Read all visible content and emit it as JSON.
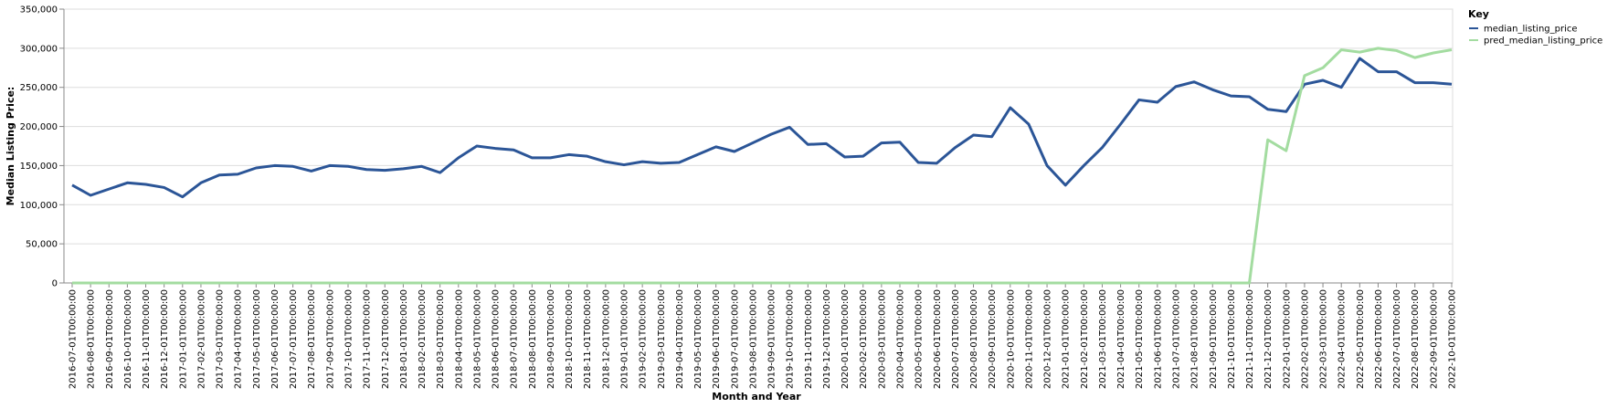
{
  "chart_data": {
    "type": "line",
    "xlabel": "Month and Year",
    "ylabel": "Median Listing Price:",
    "ylim": [
      0,
      350000
    ],
    "yticks": [
      "0",
      "50,000",
      "100,000",
      "150,000",
      "200,000",
      "250,000",
      "300,000",
      "350,000"
    ],
    "grid": true,
    "legend": {
      "title": "Key",
      "placement": "top-right"
    },
    "x": [
      "2016-07-01T00:00:00",
      "2016-08-01T00:00:00",
      "2016-09-01T00:00:00",
      "2016-10-01T00:00:00",
      "2016-11-01T00:00:00",
      "2016-12-01T00:00:00",
      "2017-01-01T00:00:00",
      "2017-02-01T00:00:00",
      "2017-03-01T00:00:00",
      "2017-04-01T00:00:00",
      "2017-05-01T00:00:00",
      "2017-06-01T00:00:00",
      "2017-07-01T00:00:00",
      "2017-08-01T00:00:00",
      "2017-09-01T00:00:00",
      "2017-10-01T00:00:00",
      "2017-11-01T00:00:00",
      "2017-12-01T00:00:00",
      "2018-01-01T00:00:00",
      "2018-02-01T00:00:00",
      "2018-03-01T00:00:00",
      "2018-04-01T00:00:00",
      "2018-05-01T00:00:00",
      "2018-06-01T00:00:00",
      "2018-07-01T00:00:00",
      "2018-08-01T00:00:00",
      "2018-09-01T00:00:00",
      "2018-10-01T00:00:00",
      "2018-11-01T00:00:00",
      "2018-12-01T00:00:00",
      "2019-01-01T00:00:00",
      "2019-02-01T00:00:00",
      "2019-03-01T00:00:00",
      "2019-04-01T00:00:00",
      "2019-05-01T00:00:00",
      "2019-06-01T00:00:00",
      "2019-07-01T00:00:00",
      "2019-08-01T00:00:00",
      "2019-09-01T00:00:00",
      "2019-10-01T00:00:00",
      "2019-11-01T00:00:00",
      "2019-12-01T00:00:00",
      "2020-01-01T00:00:00",
      "2020-02-01T00:00:00",
      "2020-03-01T00:00:00",
      "2020-04-01T00:00:00",
      "2020-05-01T00:00:00",
      "2020-06-01T00:00:00",
      "2020-07-01T00:00:00",
      "2020-08-01T00:00:00",
      "2020-09-01T00:00:00",
      "2020-10-01T00:00:00",
      "2020-11-01T00:00:00",
      "2020-12-01T00:00:00",
      "2021-01-01T00:00:00",
      "2021-02-01T00:00:00",
      "2021-03-01T00:00:00",
      "2021-04-01T00:00:00",
      "2021-05-01T00:00:00",
      "2021-06-01T00:00:00",
      "2021-07-01T00:00:00",
      "2021-08-01T00:00:00",
      "2021-09-01T00:00:00",
      "2021-10-01T00:00:00",
      "2021-11-01T00:00:00",
      "2021-12-01T00:00:00",
      "2022-01-01T00:00:00",
      "2022-02-01T00:00:00",
      "2022-03-01T00:00:00",
      "2022-04-01T00:00:00",
      "2022-05-01T00:00:00",
      "2022-06-01T00:00:00",
      "2022-07-01T00:00:00",
      "2022-08-01T00:00:00",
      "2022-09-01T00:00:00",
      "2022-10-01T00:00:00"
    ],
    "series": [
      {
        "name": "median_listing_price",
        "color": "#2b5597",
        "values": [
          125000,
          112000,
          120000,
          128000,
          126000,
          122000,
          110000,
          128000,
          138000,
          139000,
          147000,
          150000,
          149000,
          143000,
          150000,
          149000,
          145000,
          144000,
          146000,
          149000,
          141000,
          160000,
          175000,
          172000,
          170000,
          160000,
          160000,
          164000,
          162000,
          155000,
          151000,
          155000,
          153000,
          154000,
          164000,
          174000,
          168000,
          179000,
          190000,
          199000,
          177000,
          178000,
          161000,
          162000,
          179000,
          180000,
          154000,
          153000,
          173000,
          189000,
          187000,
          224000,
          203000,
          150000,
          125000,
          150000,
          173000,
          203000,
          234000,
          231000,
          251000,
          257000,
          247000,
          239000,
          238000,
          222000,
          219000,
          254000,
          259000,
          250000,
          287000,
          270000,
          270000,
          256000,
          256000,
          254000
        ]
      },
      {
        "name": "pred_median_listing_price",
        "color": "#a3dca0",
        "values": [
          0,
          0,
          0,
          0,
          0,
          0,
          0,
          0,
          0,
          0,
          0,
          0,
          0,
          0,
          0,
          0,
          0,
          0,
          0,
          0,
          0,
          0,
          0,
          0,
          0,
          0,
          0,
          0,
          0,
          0,
          0,
          0,
          0,
          0,
          0,
          0,
          0,
          0,
          0,
          0,
          0,
          0,
          0,
          0,
          0,
          0,
          0,
          0,
          0,
          0,
          0,
          0,
          0,
          0,
          0,
          0,
          0,
          0,
          0,
          0,
          0,
          0,
          0,
          0,
          0,
          183000,
          169000,
          265000,
          275000,
          298000,
          295000,
          300000,
          297000,
          288000,
          294000,
          298000
        ]
      }
    ]
  }
}
